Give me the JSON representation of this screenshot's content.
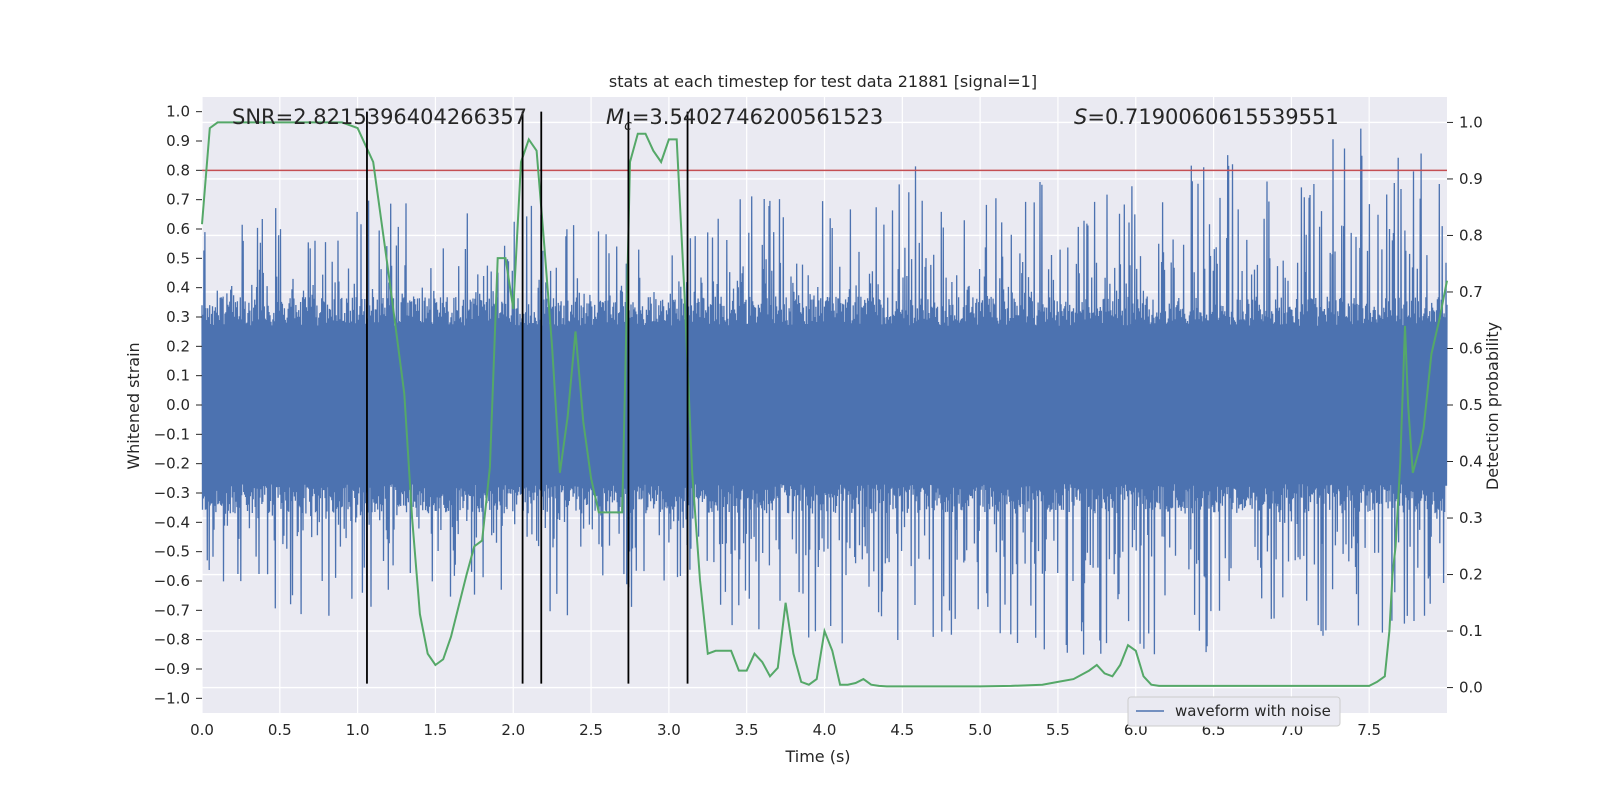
{
  "chart_data": {
    "type": "line",
    "title": "stats at each timestep for test data 21881 [signal=1]",
    "xlabel": "Time (s)",
    "ylabel": "Whitened strain",
    "ylabel_right": "Detection probability",
    "xlim": [
      0.0,
      8.0
    ],
    "ylim": [
      -1.05,
      1.05
    ],
    "ylim_right": [
      -0.045,
      1.045
    ],
    "x_ticks": [
      0.0,
      0.5,
      1.0,
      1.5,
      2.0,
      2.5,
      3.0,
      3.5,
      4.0,
      4.5,
      5.0,
      5.5,
      6.0,
      6.5,
      7.0,
      7.5
    ],
    "x_tick_labels": [
      "0.0",
      "0.5",
      "1.0",
      "1.5",
      "2.0",
      "2.5",
      "3.0",
      "3.5",
      "4.0",
      "4.5",
      "5.0",
      "5.5",
      "6.0",
      "6.5",
      "7.0",
      "7.5"
    ],
    "y_ticks": [
      1.0,
      0.9,
      0.8,
      0.7,
      0.6,
      0.5,
      0.4,
      0.3,
      0.2,
      0.1,
      0.0,
      -0.1,
      -0.2,
      -0.3,
      -0.4,
      -0.5,
      -0.6,
      -0.7,
      -0.8,
      -0.9,
      -1.0
    ],
    "y_tick_labels": [
      "1.0",
      "0.9",
      "0.8",
      "0.7",
      "0.6",
      "0.5",
      "0.4",
      "0.3",
      "0.2",
      "0.1",
      "0.0",
      "−0.1",
      "−0.2",
      "−0.3",
      "−0.4",
      "−0.5",
      "−0.6",
      "−0.7",
      "−0.8",
      "−0.9",
      "−1.0"
    ],
    "y_right_ticks": [
      1.0,
      0.9,
      0.8,
      0.7,
      0.6,
      0.5,
      0.4,
      0.3,
      0.2,
      0.1,
      0.0
    ],
    "y_right_tick_labels": [
      "1.0",
      "0.9",
      "0.8",
      "0.7",
      "0.6",
      "0.5",
      "0.4",
      "0.3",
      "0.2",
      "0.1",
      "0.0"
    ],
    "grid": true,
    "legend": {
      "position": "lower-right",
      "entries": [
        "waveform with noise"
      ]
    },
    "annotations": {
      "snr": "SNR=2.8215396404266357",
      "mc_symbol": "M",
      "mc_subscript": "c",
      "mc_value": "=3.5402746200561523",
      "s_symbol": "S",
      "s_value": "=0.7190060615539551"
    },
    "threshold_line": {
      "y": 0.8,
      "color": "#c44e52"
    },
    "vertical_lines": {
      "x": [
        1.06,
        2.06,
        2.18,
        2.74,
        3.12
      ],
      "y_range": [
        -0.95,
        1.0
      ],
      "color": "#000000"
    },
    "series": [
      {
        "name": "waveform with noise",
        "color": "#4c72b0",
        "envelope": {
          "x": [
            0.0,
            0.5,
            1.0,
            1.5,
            2.0,
            2.5,
            3.0,
            3.5,
            4.0,
            4.5,
            5.0,
            5.5,
            6.0,
            6.5,
            7.0,
            7.5,
            8.0
          ],
          "max": [
            0.6,
            0.68,
            0.72,
            0.67,
            0.72,
            0.65,
            0.62,
            0.72,
            0.7,
            0.85,
            0.7,
            0.8,
            0.75,
            0.9,
            0.8,
            1.0,
            0.8
          ],
          "min": [
            -0.6,
            -0.72,
            -0.72,
            -0.65,
            -0.68,
            -0.74,
            -0.72,
            -0.8,
            -0.84,
            -0.8,
            -0.78,
            -0.9,
            -0.84,
            -0.9,
            -0.78,
            -0.8,
            -0.7
          ]
        }
      },
      {
        "name": "detection probability",
        "axis": "right",
        "color": "#55a868",
        "x": [
          0.0,
          0.05,
          0.1,
          0.2,
          0.3,
          0.4,
          0.5,
          0.6,
          0.7,
          0.8,
          0.9,
          1.0,
          1.1,
          1.2,
          1.3,
          1.35,
          1.4,
          1.45,
          1.5,
          1.55,
          1.6,
          1.7,
          1.75,
          1.8,
          1.85,
          1.9,
          1.95,
          2.0,
          2.05,
          2.1,
          2.15,
          2.2,
          2.25,
          2.3,
          2.35,
          2.4,
          2.45,
          2.5,
          2.55,
          2.6,
          2.65,
          2.7,
          2.75,
          2.8,
          2.85,
          2.9,
          2.95,
          3.0,
          3.05,
          3.1,
          3.15,
          3.2,
          3.25,
          3.3,
          3.35,
          3.4,
          3.45,
          3.5,
          3.55,
          3.6,
          3.65,
          3.7,
          3.75,
          3.8,
          3.85,
          3.9,
          3.95,
          4.0,
          4.05,
          4.1,
          4.15,
          4.2,
          4.25,
          4.3,
          4.35,
          4.4,
          4.5,
          4.6,
          4.8,
          5.0,
          5.2,
          5.4,
          5.5,
          5.6,
          5.7,
          5.75,
          5.8,
          5.85,
          5.9,
          5.95,
          6.0,
          6.05,
          6.1,
          6.15,
          6.2,
          6.3,
          6.5,
          6.7,
          6.9,
          7.1,
          7.3,
          7.5,
          7.55,
          7.6,
          7.63,
          7.65,
          7.67,
          7.7,
          7.73,
          7.75,
          7.78,
          7.8,
          7.83,
          7.85,
          7.9,
          7.95,
          8.0
        ],
        "y": [
          0.82,
          0.99,
          1.0,
          1.0,
          1.0,
          1.0,
          1.0,
          1.0,
          1.0,
          1.0,
          1.0,
          0.99,
          0.93,
          0.73,
          0.52,
          0.3,
          0.13,
          0.06,
          0.04,
          0.05,
          0.09,
          0.2,
          0.25,
          0.26,
          0.39,
          0.76,
          0.76,
          0.67,
          0.93,
          0.97,
          0.95,
          0.78,
          0.6,
          0.38,
          0.48,
          0.63,
          0.47,
          0.37,
          0.31,
          0.31,
          0.31,
          0.31,
          0.93,
          0.98,
          0.98,
          0.95,
          0.93,
          0.97,
          0.97,
          0.7,
          0.38,
          0.19,
          0.06,
          0.065,
          0.065,
          0.065,
          0.03,
          0.03,
          0.06,
          0.045,
          0.02,
          0.035,
          0.15,
          0.06,
          0.01,
          0.005,
          0.015,
          0.1,
          0.065,
          0.005,
          0.005,
          0.008,
          0.015,
          0.005,
          0.003,
          0.002,
          0.002,
          0.002,
          0.002,
          0.002,
          0.003,
          0.005,
          0.01,
          0.015,
          0.03,
          0.04,
          0.025,
          0.02,
          0.04,
          0.075,
          0.065,
          0.02,
          0.005,
          0.003,
          0.003,
          0.003,
          0.003,
          0.003,
          0.003,
          0.003,
          0.003,
          0.003,
          0.01,
          0.02,
          0.1,
          0.2,
          0.25,
          0.4,
          0.64,
          0.5,
          0.38,
          0.4,
          0.43,
          0.46,
          0.59,
          0.65,
          0.72
        ]
      }
    ]
  }
}
